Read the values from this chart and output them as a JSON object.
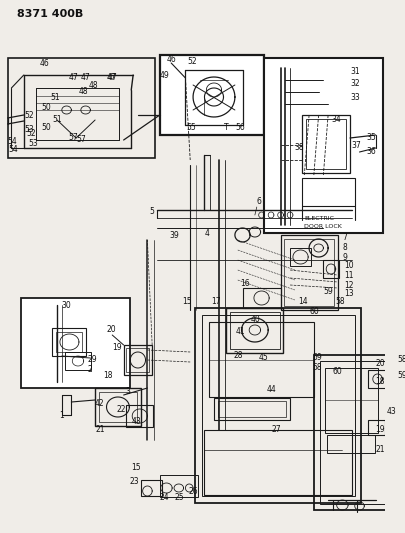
{
  "bg_color": "#f0ede8",
  "line_color": "#1a1a1a",
  "text_color": "#111111",
  "figsize": [
    4.05,
    5.33
  ],
  "dpi": 100,
  "header": "8371 400B",
  "electric_label": "ELECTRIC\nDOOR LOCK"
}
